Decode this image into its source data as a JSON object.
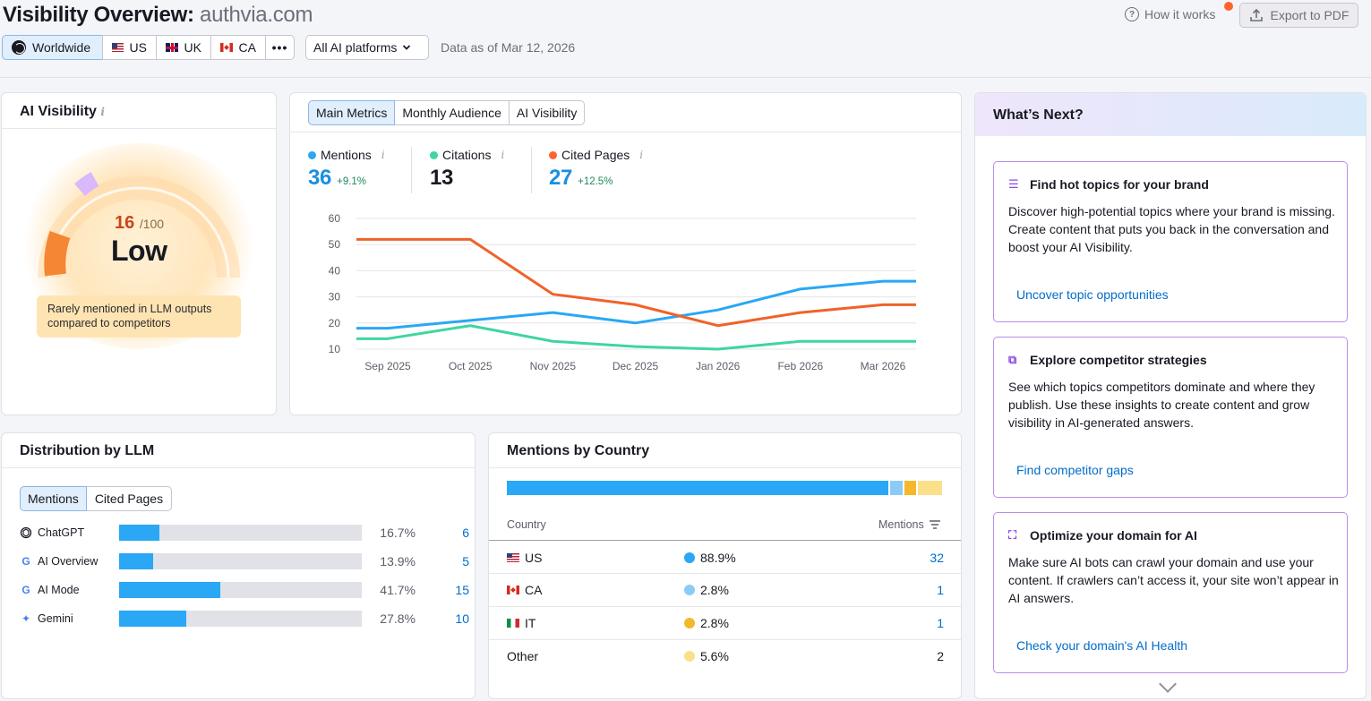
{
  "header": {
    "title": "Visibility Overview:",
    "domain": "authvia.com",
    "how_it_works": "How it works",
    "export_label": "Export to PDF",
    "geo_tabs": [
      {
        "label": "Worldwide",
        "icon": "globe-icon",
        "selected": true
      },
      {
        "label": "US",
        "icon": "us-flag-icon"
      },
      {
        "label": "UK",
        "icon": "uk-flag-icon"
      },
      {
        "label": "CA",
        "icon": "ca-flag-icon"
      },
      {
        "label": "•••",
        "icon": "more-icon"
      }
    ],
    "platform_select": "All AI platforms",
    "data_as_of": "Data as of Mar 12, 2026"
  },
  "ai_visibility": {
    "title": "AI Visibility",
    "info": "i",
    "score": "16",
    "score_max": "/100",
    "level": "Low",
    "score_fraction": 0.16,
    "note": "Rarely mentioned in LLM outputs compared to competitors",
    "colors": {
      "segment_active": "#f58634",
      "segment_marker": "#d9b8fb",
      "glow": "#ffe6bd"
    }
  },
  "metrics": {
    "tabs": [
      "Main Metrics",
      "Monthly Audience",
      "AI Visibility"
    ],
    "active_tab": 0,
    "items": [
      {
        "label": "Mentions",
        "info": "i",
        "value": "36",
        "change": "+9.1%",
        "color": "#2aa7f5",
        "value_color": "#1a8fe0"
      },
      {
        "label": "Citations",
        "info": "i",
        "value": "13",
        "change": "",
        "color": "#3fd5a0",
        "value_color": "#171a22"
      },
      {
        "label": "Cited Pages",
        "info": "i",
        "value": "27",
        "change": "+12.5%",
        "color": "#ff642d",
        "value_color": "#1a8fe0"
      }
    ]
  },
  "chart_data": {
    "type": "line",
    "x": [
      "Sep 2025",
      "Oct 2025",
      "Nov 2025",
      "Dec 2025",
      "Jan 2026",
      "Feb 2026",
      "Mar 2026"
    ],
    "y_ticks": [
      10,
      20,
      30,
      40,
      50,
      60
    ],
    "ylim": [
      10,
      60
    ],
    "grid": true,
    "series": [
      {
        "name": "Mentions",
        "color": "#2aa7f5",
        "values": [
          18,
          21,
          24,
          20,
          25,
          33,
          36
        ]
      },
      {
        "name": "Citations",
        "color": "#3fd5a0",
        "values": [
          14,
          19,
          13,
          11,
          10,
          13,
          13
        ]
      },
      {
        "name": "Cited Pages",
        "color": "#f0622a",
        "values": [
          52,
          52,
          31,
          27,
          19,
          24,
          27
        ]
      }
    ]
  },
  "whats_next": {
    "title": "What’s Next?",
    "cards": [
      {
        "icon": "checklist-icon",
        "title": "Find hot topics for your brand",
        "description": "Discover high-potential topics where your brand is missing. Create content that puts you back in the conversation and boost your AI Visibility.",
        "link": "Uncover topic opportunities"
      },
      {
        "icon": "search-window-icon",
        "title": "Explore competitor strategies",
        "description": "See which topics competitors dominate and where they publish. Use these insights to create content and grow visibility in AI-generated answers.",
        "link": "Find competitor gaps"
      },
      {
        "icon": "optimize-icon",
        "title": "Optimize your domain for AI",
        "description": "Make sure AI bots can crawl your domain and use your content. If crawlers can’t access it, your site won’t appear in AI answers.",
        "link": "Check your domain's AI Health"
      }
    ]
  },
  "distribution": {
    "title": "Distribution by LLM",
    "tabs": [
      "Mentions",
      "Cited Pages"
    ],
    "active_tab": 0,
    "rows": [
      {
        "name": "ChatGPT",
        "icon": "chatgpt-icon",
        "pct": "16.7%",
        "share": 0.167,
        "count": "6"
      },
      {
        "name": "AI Overview",
        "icon": "google-icon",
        "pct": "13.9%",
        "share": 0.139,
        "count": "5"
      },
      {
        "name": "AI Mode",
        "icon": "google-icon",
        "pct": "41.7%",
        "share": 0.417,
        "count": "15"
      },
      {
        "name": "Gemini",
        "icon": "gemini-icon",
        "pct": "27.8%",
        "share": 0.278,
        "count": "10"
      }
    ]
  },
  "countries": {
    "title": "Mentions by Country",
    "col_country": "Country",
    "col_mentions": "Mentions",
    "rows": [
      {
        "name": "US",
        "icon": "us-flag-icon",
        "pct": "88.9%",
        "share": 0.889,
        "count": "32",
        "color": "#2aa7f5"
      },
      {
        "name": "CA",
        "icon": "ca-flag-icon",
        "pct": "2.8%",
        "share": 0.028,
        "count": "1",
        "color": "#8ccbf7"
      },
      {
        "name": "IT",
        "icon": "it-flag-icon",
        "pct": "2.8%",
        "share": 0.028,
        "count": "1",
        "color": "#f5b82a"
      },
      {
        "name": "Other",
        "icon": "",
        "pct": "5.6%",
        "share": 0.056,
        "count": "2",
        "color": "#fbe08a"
      }
    ]
  }
}
